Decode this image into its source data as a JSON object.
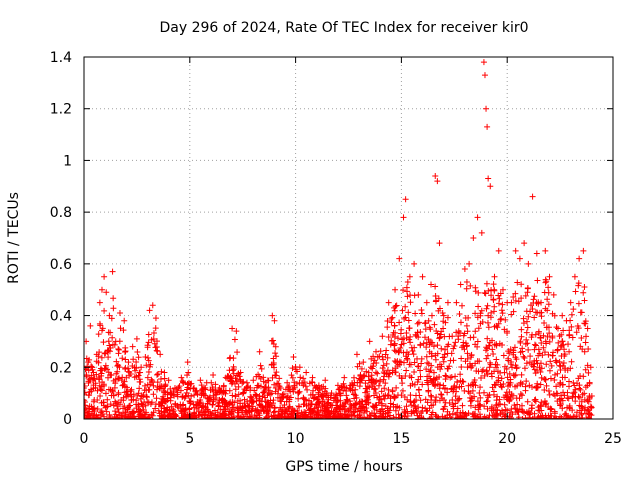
{
  "chart_data": {
    "type": "scatter",
    "title": "Day 296 of 2024, Rate Of TEC Index for receiver kir0",
    "xlabel": "GPS time / hours",
    "ylabel": "ROTI / TECUs",
    "xlim": [
      0,
      25
    ],
    "ylim": [
      0,
      1.4
    ],
    "grid": true,
    "x_ticks": [
      0,
      5,
      10,
      15,
      20,
      25
    ],
    "x_tick_labels": [
      "0",
      "5",
      "10",
      "15",
      "20",
      "25"
    ],
    "y_ticks": [
      0,
      0.2,
      0.4,
      0.6,
      0.8,
      1.0,
      1.2,
      1.4
    ],
    "y_tick_labels": [
      "0",
      "0.2",
      "0.4",
      "0.6",
      "0.8",
      "1",
      "1.2",
      "1.4"
    ],
    "marker": "+",
    "marker_color": "#ff0000",
    "series": [
      {
        "name": "ROTI",
        "points": [
          [
            0.0,
            0.12
          ],
          [
            0.1,
            0.3
          ],
          [
            0.2,
            0.22
          ],
          [
            0.3,
            0.36
          ],
          [
            0.45,
            0.18
          ],
          [
            0.6,
            0.25
          ],
          [
            0.75,
            0.45
          ],
          [
            0.85,
            0.5
          ],
          [
            0.95,
            0.55
          ],
          [
            1.05,
            0.49
          ],
          [
            1.2,
            0.4
          ],
          [
            1.35,
            0.57
          ],
          [
            1.5,
            0.3
          ],
          [
            1.7,
            0.41
          ],
          [
            1.9,
            0.38
          ],
          [
            2.1,
            0.22
          ],
          [
            2.3,
            0.28
          ],
          [
            2.5,
            0.31
          ],
          [
            2.7,
            0.2
          ],
          [
            2.9,
            0.24
          ],
          [
            3.1,
            0.42
          ],
          [
            3.25,
            0.44
          ],
          [
            3.4,
            0.39
          ],
          [
            3.6,
            0.25
          ],
          [
            3.8,
            0.18
          ],
          [
            4.0,
            0.15
          ],
          [
            4.3,
            0.12
          ],
          [
            4.6,
            0.16
          ],
          [
            4.9,
            0.22
          ],
          [
            5.2,
            0.12
          ],
          [
            5.5,
            0.15
          ],
          [
            5.8,
            0.14
          ],
          [
            6.1,
            0.17
          ],
          [
            6.4,
            0.12
          ],
          [
            6.7,
            0.16
          ],
          [
            7.0,
            0.35
          ],
          [
            7.2,
            0.34
          ],
          [
            7.4,
            0.18
          ],
          [
            7.7,
            0.14
          ],
          [
            8.0,
            0.15
          ],
          [
            8.3,
            0.26
          ],
          [
            8.6,
            0.14
          ],
          [
            8.9,
            0.4
          ],
          [
            9.0,
            0.38
          ],
          [
            9.3,
            0.12
          ],
          [
            9.6,
            0.14
          ],
          [
            9.9,
            0.24
          ],
          [
            10.2,
            0.2
          ],
          [
            10.5,
            0.18
          ],
          [
            10.8,
            0.16
          ],
          [
            11.1,
            0.13
          ],
          [
            11.4,
            0.15
          ],
          [
            11.7,
            0.1
          ],
          [
            12.0,
            0.13
          ],
          [
            12.3,
            0.16
          ],
          [
            12.6,
            0.13
          ],
          [
            12.9,
            0.25
          ],
          [
            13.2,
            0.22
          ],
          [
            13.5,
            0.3
          ],
          [
            13.8,
            0.26
          ],
          [
            14.1,
            0.32
          ],
          [
            14.4,
            0.45
          ],
          [
            14.7,
            0.5
          ],
          [
            14.9,
            0.62
          ],
          [
            15.1,
            0.78
          ],
          [
            15.2,
            0.85
          ],
          [
            15.4,
            0.55
          ],
          [
            15.6,
            0.6
          ],
          [
            15.8,
            0.48
          ],
          [
            16.0,
            0.55
          ],
          [
            16.2,
            0.45
          ],
          [
            16.4,
            0.52
          ],
          [
            16.6,
            0.94
          ],
          [
            16.7,
            0.92
          ],
          [
            16.8,
            0.68
          ],
          [
            17.0,
            0.4
          ],
          [
            17.2,
            0.45
          ],
          [
            17.4,
            0.32
          ],
          [
            17.6,
            0.45
          ],
          [
            17.8,
            0.52
          ],
          [
            18.0,
            0.58
          ],
          [
            18.2,
            0.6
          ],
          [
            18.4,
            0.7
          ],
          [
            18.6,
            0.78
          ],
          [
            18.8,
            0.72
          ],
          [
            18.9,
            1.38
          ],
          [
            18.95,
            1.33
          ],
          [
            19.0,
            1.2
          ],
          [
            19.05,
            1.13
          ],
          [
            19.1,
            0.93
          ],
          [
            19.2,
            0.9
          ],
          [
            19.4,
            0.55
          ],
          [
            19.6,
            0.65
          ],
          [
            19.8,
            0.5
          ],
          [
            20.0,
            0.45
          ],
          [
            20.2,
            0.45
          ],
          [
            20.4,
            0.65
          ],
          [
            20.6,
            0.62
          ],
          [
            20.8,
            0.68
          ],
          [
            21.0,
            0.6
          ],
          [
            21.2,
            0.86
          ],
          [
            21.4,
            0.64
          ],
          [
            21.6,
            0.45
          ],
          [
            21.8,
            0.65
          ],
          [
            22.0,
            0.55
          ],
          [
            22.2,
            0.48
          ],
          [
            22.4,
            0.35
          ],
          [
            22.6,
            0.4
          ],
          [
            22.8,
            0.38
          ],
          [
            23.0,
            0.45
          ],
          [
            23.2,
            0.55
          ],
          [
            23.4,
            0.62
          ],
          [
            23.6,
            0.65
          ],
          [
            23.8,
            0.35
          ],
          [
            23.95,
            0.2
          ]
        ]
      }
    ]
  }
}
